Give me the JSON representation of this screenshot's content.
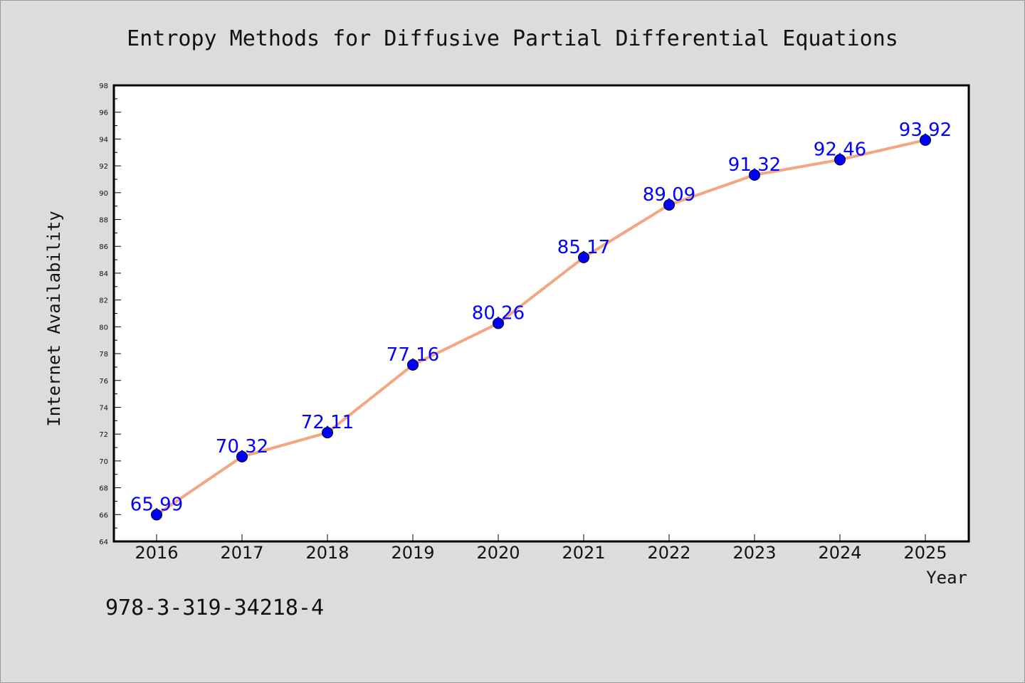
{
  "chart_data": {
    "type": "line",
    "title": "Entropy Methods for Diffusive Partial Differential Equations",
    "xlabel": "Year",
    "ylabel": "Internet Availability",
    "categories": [
      "2016",
      "2017",
      "2018",
      "2019",
      "2020",
      "2021",
      "2022",
      "2023",
      "2024",
      "2025"
    ],
    "series": [
      {
        "values": [
          65.99,
          70.32,
          72.11,
          77.16,
          80.26,
          85.17,
          89.09,
          91.32,
          92.46,
          93.92
        ],
        "data_labels": [
          "65.99",
          "70.32",
          "72.11",
          "77.16",
          "80.26",
          "85.17",
          "89.09",
          "91.32",
          "92.46",
          "93.92"
        ],
        "line_color": "#f4a582",
        "marker_color": "#0000ff"
      }
    ],
    "ylim": [
      64,
      98
    ],
    "y_ticks": [
      "64",
      "66",
      "68",
      "70",
      "72",
      "74",
      "76",
      "78",
      "80",
      "82",
      "84",
      "86",
      "88",
      "90",
      "92",
      "94",
      "96",
      "98"
    ],
    "grid": false,
    "label_color": "#0000ff"
  },
  "footnote": "978-3-319-34218-4"
}
